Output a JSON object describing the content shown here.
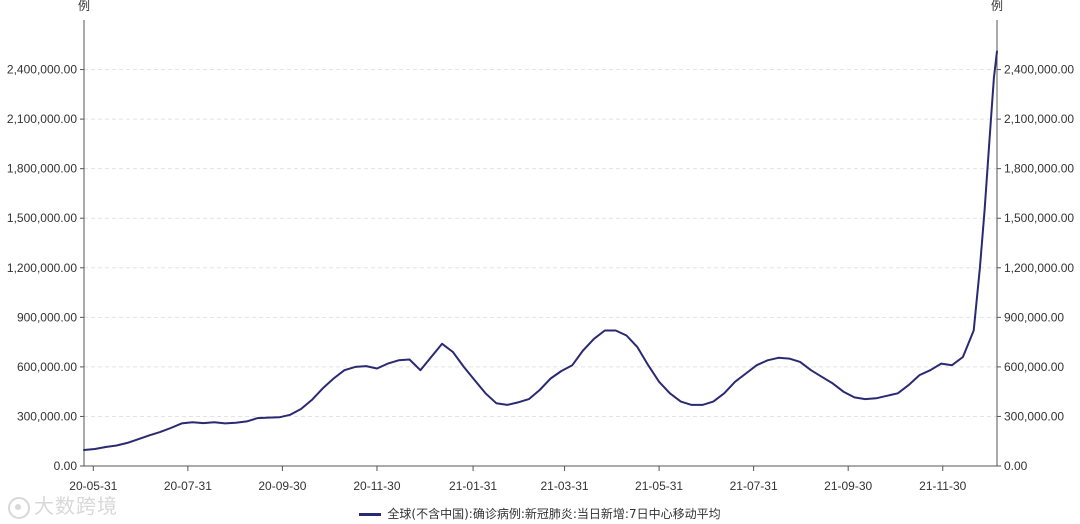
{
  "chart_data": {
    "type": "line",
    "title": "",
    "xlabel": "",
    "ylabel_left": "例",
    "ylabel_right": "例",
    "ylim": [
      0,
      2700000
    ],
    "yticks": [
      0,
      300000,
      600000,
      900000,
      1200000,
      1500000,
      1800000,
      2100000,
      2400000
    ],
    "ytick_labels": [
      "0.00",
      "300,000.00",
      "600,000.00",
      "900,000.00",
      "1,200,000.00",
      "1,500,000.00",
      "1,800,000.00",
      "2,100,000.00",
      "2,400,000.00"
    ],
    "xlim": [
      "2020-05-25",
      "2022-01-04"
    ],
    "xticks": [
      "2020-05-31",
      "2020-07-31",
      "2020-09-30",
      "2020-11-30",
      "2021-01-31",
      "2021-03-31",
      "2021-05-31",
      "2021-07-31",
      "2021-09-30",
      "2021-11-30"
    ],
    "xtick_labels": [
      "20-05-31",
      "20-07-31",
      "20-09-30",
      "20-11-30",
      "21-01-31",
      "21-03-31",
      "21-05-31",
      "21-07-31",
      "21-09-30",
      "21-11-30"
    ],
    "grid": true,
    "legend_position": "bottom-center",
    "series": [
      {
        "name": "全球(不含中国):确诊病例:新冠肺炎:当日新增:7日中心移动平均",
        "color": "#2a2a72",
        "points": [
          [
            "2020-05-25",
            97000
          ],
          [
            "2020-06-01",
            103000
          ],
          [
            "2020-06-08",
            115000
          ],
          [
            "2020-06-15",
            124000
          ],
          [
            "2020-06-22",
            140000
          ],
          [
            "2020-06-29",
            162000
          ],
          [
            "2020-07-06",
            185000
          ],
          [
            "2020-07-13",
            205000
          ],
          [
            "2020-07-20",
            230000
          ],
          [
            "2020-07-27",
            258000
          ],
          [
            "2020-08-03",
            265000
          ],
          [
            "2020-08-10",
            260000
          ],
          [
            "2020-08-17",
            265000
          ],
          [
            "2020-08-24",
            258000
          ],
          [
            "2020-08-31",
            262000
          ],
          [
            "2020-09-07",
            270000
          ],
          [
            "2020-09-14",
            290000
          ],
          [
            "2020-09-21",
            293000
          ],
          [
            "2020-09-28",
            295000
          ],
          [
            "2020-10-05",
            310000
          ],
          [
            "2020-10-12",
            345000
          ],
          [
            "2020-10-19",
            400000
          ],
          [
            "2020-10-26",
            470000
          ],
          [
            "2020-11-02",
            530000
          ],
          [
            "2020-11-09",
            580000
          ],
          [
            "2020-11-16",
            600000
          ],
          [
            "2020-11-23",
            605000
          ],
          [
            "2020-11-30",
            590000
          ],
          [
            "2020-12-07",
            620000
          ],
          [
            "2020-12-14",
            640000
          ],
          [
            "2020-12-21",
            645000
          ],
          [
            "2020-12-28",
            580000
          ],
          [
            "2021-01-04",
            660000
          ],
          [
            "2021-01-11",
            740000
          ],
          [
            "2021-01-18",
            690000
          ],
          [
            "2021-01-25",
            600000
          ],
          [
            "2021-02-01",
            520000
          ],
          [
            "2021-02-08",
            440000
          ],
          [
            "2021-02-15",
            380000
          ],
          [
            "2021-02-22",
            370000
          ],
          [
            "2021-03-01",
            385000
          ],
          [
            "2021-03-08",
            405000
          ],
          [
            "2021-03-15",
            460000
          ],
          [
            "2021-03-22",
            530000
          ],
          [
            "2021-03-29",
            575000
          ],
          [
            "2021-04-05",
            610000
          ],
          [
            "2021-04-12",
            700000
          ],
          [
            "2021-04-19",
            770000
          ],
          [
            "2021-04-26",
            820000
          ],
          [
            "2021-05-03",
            820000
          ],
          [
            "2021-05-10",
            790000
          ],
          [
            "2021-05-17",
            720000
          ],
          [
            "2021-05-24",
            610000
          ],
          [
            "2021-05-31",
            510000
          ],
          [
            "2021-06-07",
            440000
          ],
          [
            "2021-06-14",
            390000
          ],
          [
            "2021-06-21",
            370000
          ],
          [
            "2021-06-28",
            370000
          ],
          [
            "2021-07-05",
            390000
          ],
          [
            "2021-07-12",
            440000
          ],
          [
            "2021-07-19",
            510000
          ],
          [
            "2021-07-26",
            560000
          ],
          [
            "2021-08-02",
            610000
          ],
          [
            "2021-08-09",
            640000
          ],
          [
            "2021-08-16",
            655000
          ],
          [
            "2021-08-23",
            650000
          ],
          [
            "2021-08-30",
            630000
          ],
          [
            "2021-09-06",
            580000
          ],
          [
            "2021-09-13",
            540000
          ],
          [
            "2021-09-20",
            500000
          ],
          [
            "2021-09-27",
            450000
          ],
          [
            "2021-10-04",
            415000
          ],
          [
            "2021-10-11",
            405000
          ],
          [
            "2021-10-18",
            410000
          ],
          [
            "2021-10-25",
            425000
          ],
          [
            "2021-11-01",
            440000
          ],
          [
            "2021-11-08",
            490000
          ],
          [
            "2021-11-15",
            550000
          ],
          [
            "2021-11-22",
            580000
          ],
          [
            "2021-11-29",
            620000
          ],
          [
            "2021-12-06",
            610000
          ],
          [
            "2021-12-13",
            660000
          ],
          [
            "2021-12-20",
            820000
          ],
          [
            "2021-12-24",
            1200000
          ],
          [
            "2021-12-27",
            1550000
          ],
          [
            "2021-12-30",
            1950000
          ],
          [
            "2022-01-02",
            2350000
          ],
          [
            "2022-01-04",
            2510000
          ]
        ]
      }
    ]
  },
  "watermark": {
    "text": "大数跨境"
  }
}
